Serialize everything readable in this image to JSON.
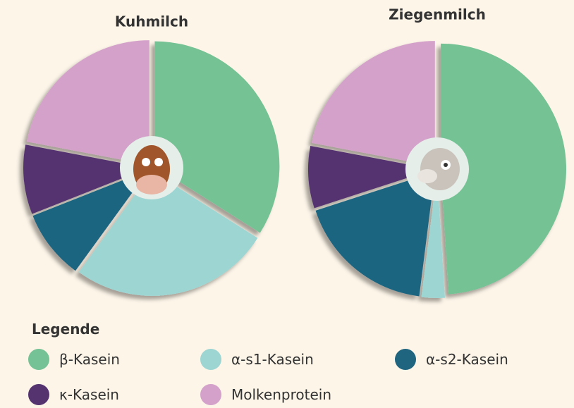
{
  "chart_data": [
    {
      "type": "pie",
      "title": "Kuhmilch",
      "legend_title": "Legende",
      "categories": [
        "β-Kasein",
        "α-s1-Kasein",
        "α-s2-Kasein",
        "κ-Kasein",
        "Molkenprotein"
      ],
      "colors": [
        "#74c295",
        "#9dd5d3",
        "#1f6580",
        "#54336f",
        "#d3a1c9"
      ],
      "values": [
        34,
        26,
        9,
        9,
        22
      ]
    },
    {
      "type": "pie",
      "title": "Ziegenmilch",
      "categories": [
        "β-Kasein",
        "α-s1-Kasein",
        "α-s2-Kasein",
        "κ-Kasein",
        "Molkenprotein"
      ],
      "colors": [
        "#74c295",
        "#9dd5d3",
        "#1f6580",
        "#54336f",
        "#d3a1c9"
      ],
      "values": [
        49,
        3,
        18,
        8,
        22
      ]
    }
  ]
}
